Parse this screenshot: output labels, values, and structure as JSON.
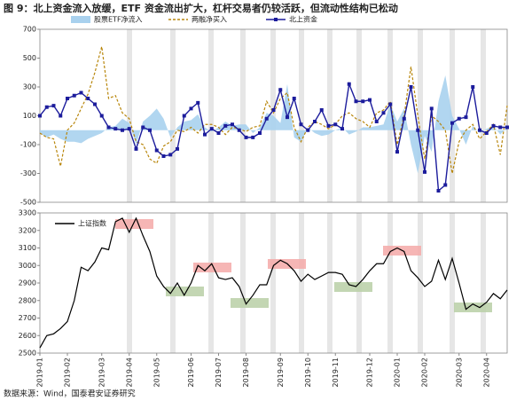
{
  "title": "图 9：北上资金流入放缓，ETF 资金流出扩大，杠杆交易者仍较活跃，但流动性结构已松动",
  "source": "数据来源：Wind，国泰君安证券研究",
  "chart_data": [
    {
      "type": "line",
      "ylim": [
        -500,
        700
      ],
      "yticks": [
        -500,
        -300,
        -100,
        100,
        300,
        500,
        700
      ],
      "series": [
        {
          "name": "股票ETF净流入",
          "color": "#a9d1ee",
          "style": "area",
          "values": [
            -20,
            -50,
            -30,
            -60,
            -80,
            -80,
            -90,
            -60,
            -40,
            -20,
            20,
            30,
            80,
            50,
            -100,
            60,
            100,
            150,
            80,
            -50,
            20,
            60,
            70,
            110,
            20,
            -10,
            20,
            60,
            30,
            40,
            40,
            -20,
            20,
            120,
            100,
            50,
            320,
            -50,
            -80,
            20,
            -20,
            -40,
            -30,
            0,
            20,
            -30,
            -10,
            20,
            20,
            30,
            40,
            180,
            60,
            150,
            -100,
            -300,
            -40,
            -150,
            200,
            380,
            100,
            10,
            -100,
            30,
            -20,
            10,
            30,
            -30,
            20
          ]
        },
        {
          "name": "两融净买入",
          "color": "#b8860b",
          "style": "dashed",
          "values": [
            -20,
            -50,
            -60,
            -250,
            0,
            50,
            150,
            250,
            400,
            580,
            220,
            240,
            120,
            80,
            -80,
            -100,
            -200,
            -230,
            -110,
            -80,
            0,
            -10,
            20,
            -20,
            40,
            40,
            20,
            -30,
            20,
            10,
            -10,
            20,
            30,
            200,
            120,
            220,
            260,
            20,
            -80,
            20,
            60,
            40,
            10,
            40,
            100,
            120,
            80,
            60,
            20,
            120,
            140,
            200,
            -100,
            100,
            440,
            100,
            -200,
            100,
            60,
            0,
            -300,
            -80,
            0,
            40,
            -60,
            -10,
            40,
            -170,
            170
          ]
        },
        {
          "name": "北上资金",
          "color": "#1c1c9c",
          "style": "marker",
          "values": [
            100,
            160,
            170,
            100,
            220,
            240,
            260,
            220,
            180,
            100,
            20,
            10,
            0,
            10,
            -130,
            20,
            0,
            -140,
            -180,
            -170,
            -130,
            100,
            150,
            190,
            -30,
            10,
            -20,
            30,
            40,
            0,
            -50,
            -50,
            -20,
            80,
            140,
            280,
            90,
            220,
            40,
            0,
            60,
            140,
            30,
            40,
            10,
            320,
            200,
            200,
            210,
            60,
            120,
            180,
            -150,
            80,
            300,
            0,
            -290,
            150,
            -420,
            -380,
            50,
            80,
            90,
            300,
            0,
            -20,
            30,
            20,
            20
          ]
        }
      ]
    },
    {
      "type": "line",
      "ylim": [
        2500,
        3300
      ],
      "yticks": [
        2500,
        2600,
        2700,
        2800,
        2900,
        3000,
        3100,
        3200,
        3300
      ],
      "categories": [
        "2019-01",
        null,
        null,
        null,
        "2019-02",
        null,
        null,
        null,
        null,
        "2019-03",
        null,
        null,
        null,
        "2019-04",
        null,
        null,
        null,
        "2019-05",
        null,
        null,
        null,
        null,
        "2019-06",
        null,
        null,
        null,
        "2019-07",
        null,
        null,
        null,
        "2019-08",
        null,
        null,
        null,
        null,
        "2019-09",
        null,
        null,
        null,
        "2019-10",
        null,
        null,
        null,
        "2019-11",
        null,
        null,
        null,
        null,
        "2019-12",
        null,
        null,
        null,
        "2020-01",
        null,
        null,
        null,
        "2020-02",
        null,
        null,
        null,
        null,
        "2020-03",
        null,
        null,
        null,
        "2020-04",
        null,
        null,
        null
      ],
      "series": [
        {
          "name": "上证指数",
          "color": "#000000",
          "values": [
            2530,
            2600,
            2610,
            2640,
            2680,
            2800,
            2990,
            2970,
            3020,
            3100,
            3090,
            3250,
            3270,
            3190,
            3270,
            3170,
            3080,
            2940,
            2880,
            2840,
            2900,
            2830,
            2900,
            3000,
            2970,
            3010,
            2930,
            2920,
            2930,
            2880,
            2780,
            2830,
            2890,
            2890,
            3000,
            3030,
            3010,
            2970,
            2910,
            2950,
            2920,
            2940,
            2960,
            2960,
            2950,
            2890,
            2880,
            2920,
            2970,
            3010,
            3010,
            3080,
            3100,
            3080,
            2970,
            2930,
            2880,
            2910,
            3030,
            2920,
            3040,
            2900,
            2750,
            2780,
            2760,
            2790,
            2840,
            2810,
            2860
          ]
        }
      ]
    }
  ]
}
